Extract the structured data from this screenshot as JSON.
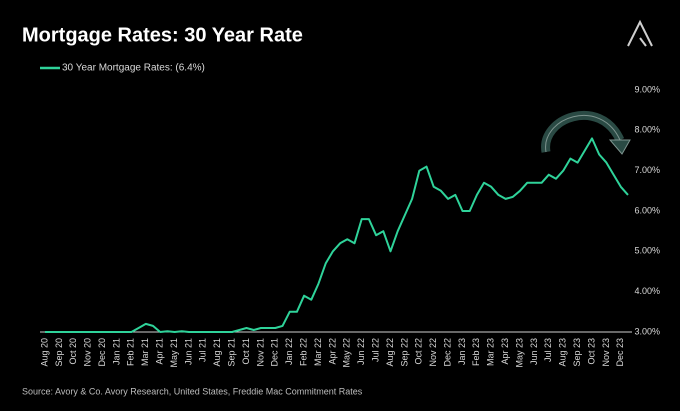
{
  "chart_data": {
    "type": "line",
    "title": "Mortgage Rates: 30 Year Rate",
    "source": "Source: Avory & Co. Avory Research,  United States,  Freddie Mac Commitment Rates",
    "categories": [
      "Aug 20",
      null,
      "Sep 20",
      null,
      "Oct 20",
      null,
      "Nov 20",
      null,
      "Dec 20",
      null,
      "Jan 21",
      null,
      "Feb 21",
      null,
      "Mar 21",
      null,
      "Apr 21",
      null,
      "May 21",
      null,
      "Jun 21",
      null,
      "Jul 21",
      null,
      "Aug 21",
      null,
      "Sep 21",
      null,
      "Oct 21",
      null,
      "Nov 21",
      null,
      "Dec 21",
      null,
      "Jan 22",
      null,
      "Feb 22",
      null,
      "Mar 22",
      null,
      "Apr 22",
      null,
      "May 22",
      null,
      "Jun 22",
      null,
      "Jul 22",
      null,
      "Aug 22",
      null,
      "Sep 22",
      null,
      "Oct 22",
      null,
      "Nov 22",
      null,
      "Dec 22",
      null,
      "Jan 23",
      null,
      "Feb 23",
      null,
      "Mar 23",
      null,
      "Apr 23",
      null,
      "May 23",
      null,
      "Jun 23",
      null,
      "Jul 23",
      null,
      "Aug 23",
      null,
      "Sep 23",
      null,
      "Oct 23",
      null,
      "Nov 23",
      null,
      "Dec 23",
      null
    ],
    "series": [
      {
        "name": "30 Year Mortgage Rates:  (6.4%)",
        "color": "#2fd39a",
        "values": [
          3.0,
          3.0,
          3.0,
          3.0,
          3.0,
          3.0,
          3.0,
          3.0,
          3.0,
          3.0,
          3.0,
          3.0,
          3.0,
          3.1,
          3.2,
          3.15,
          3.0,
          3.02,
          3.0,
          3.02,
          3.0,
          3.0,
          3.0,
          3.0,
          3.0,
          3.0,
          3.0,
          3.05,
          3.1,
          3.05,
          3.1,
          3.1,
          3.1,
          3.15,
          3.5,
          3.5,
          3.9,
          3.8,
          4.2,
          4.7,
          5.0,
          5.2,
          5.3,
          5.2,
          5.8,
          5.8,
          5.4,
          5.5,
          5.0,
          5.5,
          5.9,
          6.3,
          7.0,
          7.1,
          6.6,
          6.5,
          6.3,
          6.4,
          6.0,
          6.0,
          6.4,
          6.7,
          6.6,
          6.4,
          6.3,
          6.35,
          6.5,
          6.7,
          6.7,
          6.7,
          6.9,
          6.8,
          7.0,
          7.3,
          7.2,
          7.5,
          7.8,
          7.4,
          7.2,
          6.9,
          6.6,
          6.4
        ]
      }
    ],
    "ylim": [
      3,
      9
    ],
    "yticks": [
      {
        "value": 3,
        "label": "3.00%"
      },
      {
        "value": 4,
        "label": "4.00%"
      },
      {
        "value": 5,
        "label": "5.00%"
      },
      {
        "value": 6,
        "label": "6.00%"
      },
      {
        "value": 7,
        "label": "7.00%"
      },
      {
        "value": 8,
        "label": "8.00%"
      },
      {
        "value": 9,
        "label": "9.00%"
      }
    ],
    "grid": false,
    "legend": "top-left"
  }
}
